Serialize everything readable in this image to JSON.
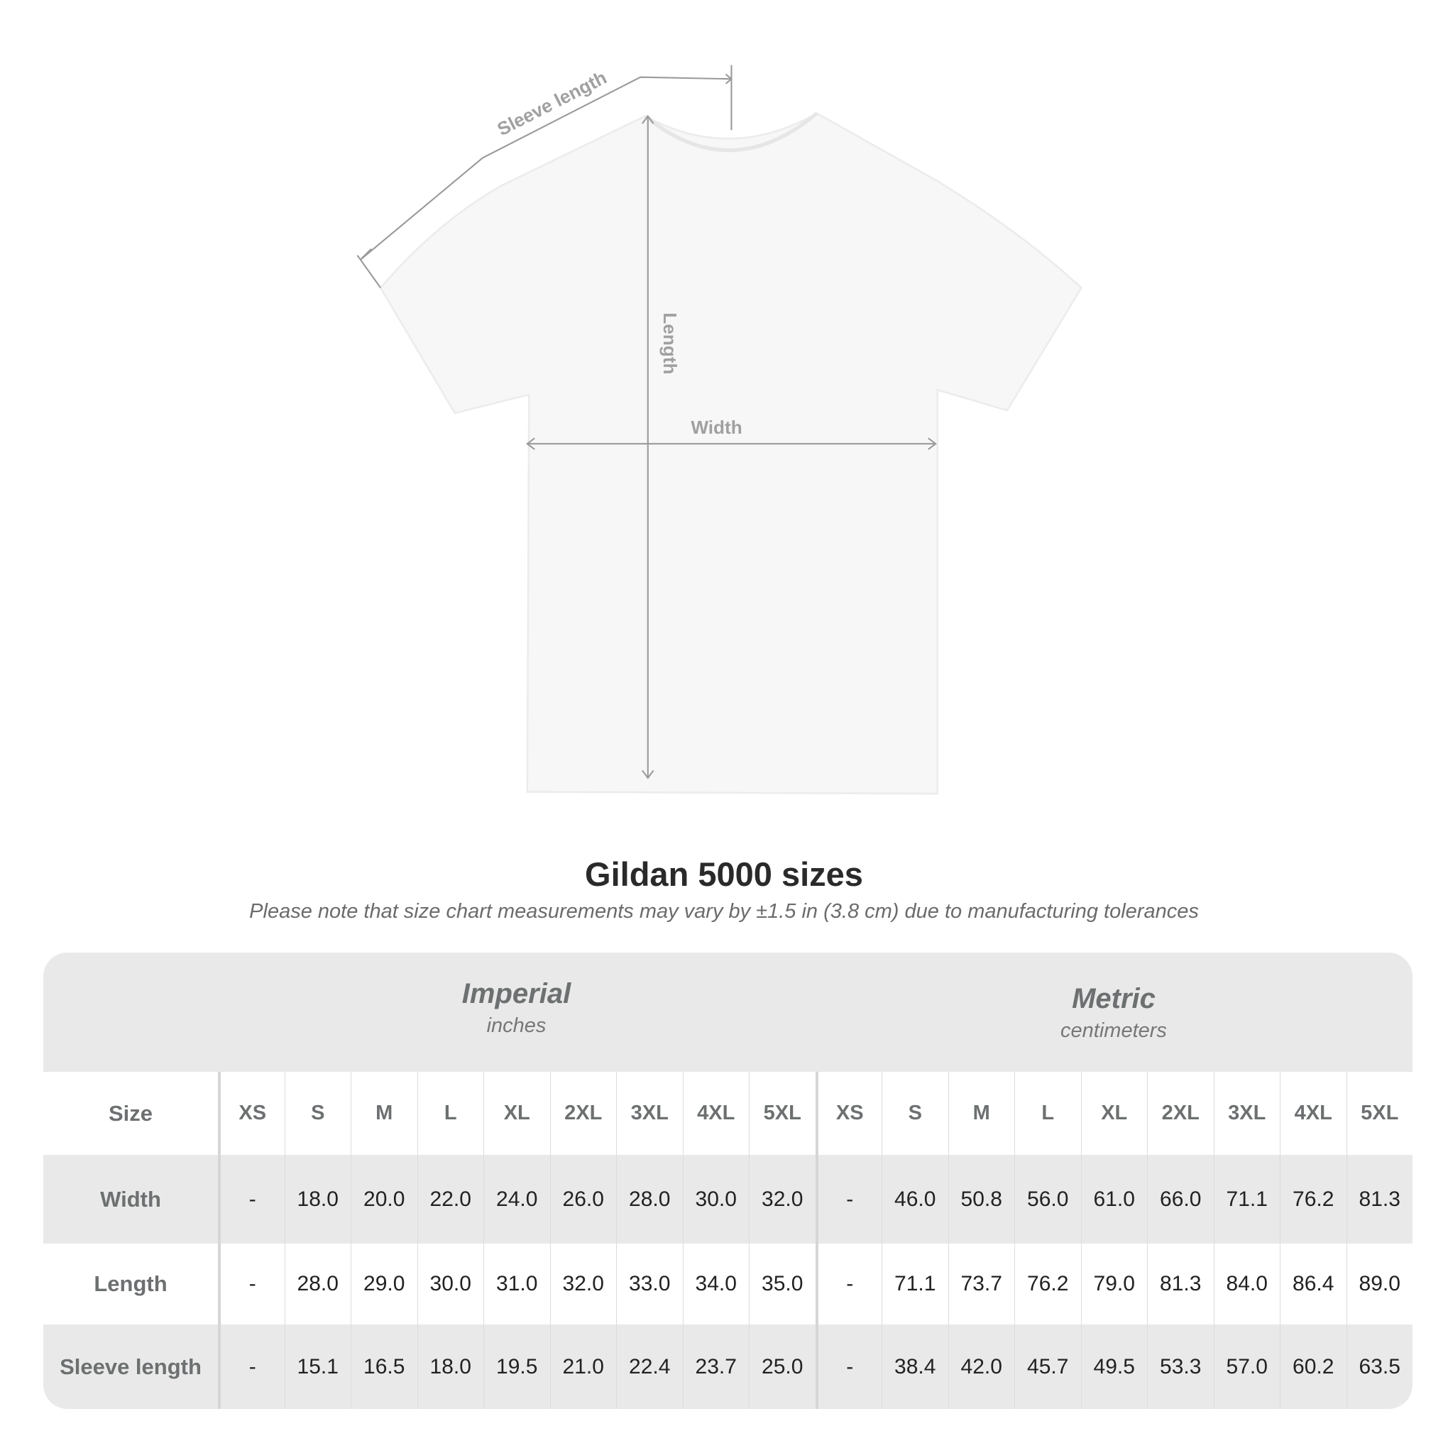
{
  "diagram": {
    "sleeve_label": "Sleeve length",
    "length_label": "Length",
    "width_label": "Width",
    "line_color": "#9a9a9a"
  },
  "title": "Gildan 5000 sizes",
  "note": "Please note that size chart measurements may vary by ±1.5 in (3.8 cm) due to manufacturing tolerances",
  "table": {
    "imperial": {
      "label": "Imperial",
      "unit": "inches"
    },
    "metric": {
      "label": "Metric",
      "unit": "centimeters"
    },
    "size_label": "Size",
    "sizes": [
      "XS",
      "S",
      "M",
      "L",
      "XL",
      "2XL",
      "3XL",
      "4XL",
      "5XL"
    ],
    "rows": [
      {
        "label": "Width",
        "imperial": [
          "-",
          "18.0",
          "20.0",
          "22.0",
          "24.0",
          "26.0",
          "28.0",
          "30.0",
          "32.0"
        ],
        "metric": [
          "-",
          "46.0",
          "50.8",
          "56.0",
          "61.0",
          "66.0",
          "71.1",
          "76.2",
          "81.3"
        ]
      },
      {
        "label": "Length",
        "imperial": [
          "-",
          "28.0",
          "29.0",
          "30.0",
          "31.0",
          "32.0",
          "33.0",
          "34.0",
          "35.0"
        ],
        "metric": [
          "-",
          "71.1",
          "73.7",
          "76.2",
          "79.0",
          "81.3",
          "84.0",
          "86.4",
          "89.0"
        ]
      },
      {
        "label": "Sleeve length",
        "imperial": [
          "-",
          "15.1",
          "16.5",
          "18.0",
          "19.5",
          "21.0",
          "22.4",
          "23.7",
          "25.0"
        ],
        "metric": [
          "-",
          "38.4",
          "42.0",
          "45.7",
          "49.5",
          "53.3",
          "57.0",
          "60.2",
          "63.5"
        ]
      }
    ],
    "colors": {
      "band": "#e9e9e9",
      "header_text": "#6d7071"
    }
  }
}
